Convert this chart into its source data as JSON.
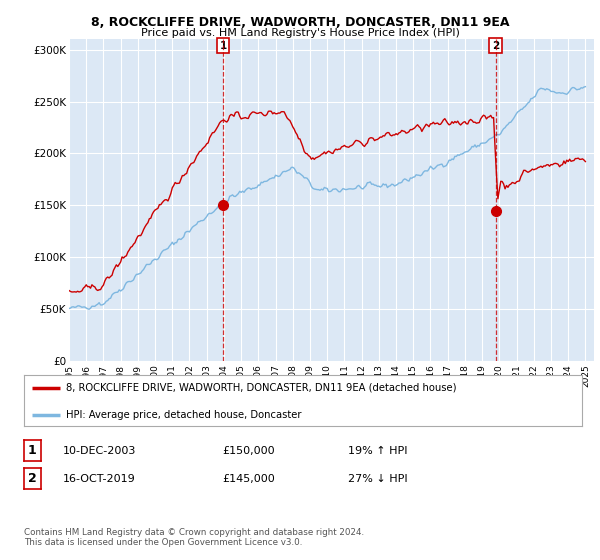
{
  "title": "8, ROCKCLIFFE DRIVE, WADWORTH, DONCASTER, DN11 9EA",
  "subtitle": "Price paid vs. HM Land Registry's House Price Index (HPI)",
  "legend_line1": "8, ROCKCLIFFE DRIVE, WADWORTH, DONCASTER, DN11 9EA (detached house)",
  "legend_line2": "HPI: Average price, detached house, Doncaster",
  "footnote": "Contains HM Land Registry data © Crown copyright and database right 2024.\nThis data is licensed under the Open Government Licence v3.0.",
  "table_rows": [
    {
      "num": "1",
      "date": "10-DEC-2003",
      "price": "£150,000",
      "hpi": "19% ↑ HPI"
    },
    {
      "num": "2",
      "date": "16-OCT-2019",
      "price": "£145,000",
      "hpi": "27% ↓ HPI"
    }
  ],
  "hpi_color": "#7eb7e0",
  "price_color": "#cc0000",
  "vline_color": "#cc0000",
  "marker_color": "#cc0000",
  "background_color": "#ffffff",
  "plot_bg_color": "#dce8f5",
  "grid_color": "#ffffff",
  "ylim": [
    0,
    310000
  ],
  "yticks": [
    0,
    50000,
    100000,
    150000,
    200000,
    250000,
    300000
  ],
  "ytick_labels": [
    "£0",
    "£50K",
    "£100K",
    "£150K",
    "£200K",
    "£250K",
    "£300K"
  ],
  "transaction1_year": 2003.95,
  "transaction1_price": 150000,
  "transaction2_year": 2019.79,
  "transaction2_price": 145000,
  "xmin": 1995,
  "xmax": 2025.5
}
